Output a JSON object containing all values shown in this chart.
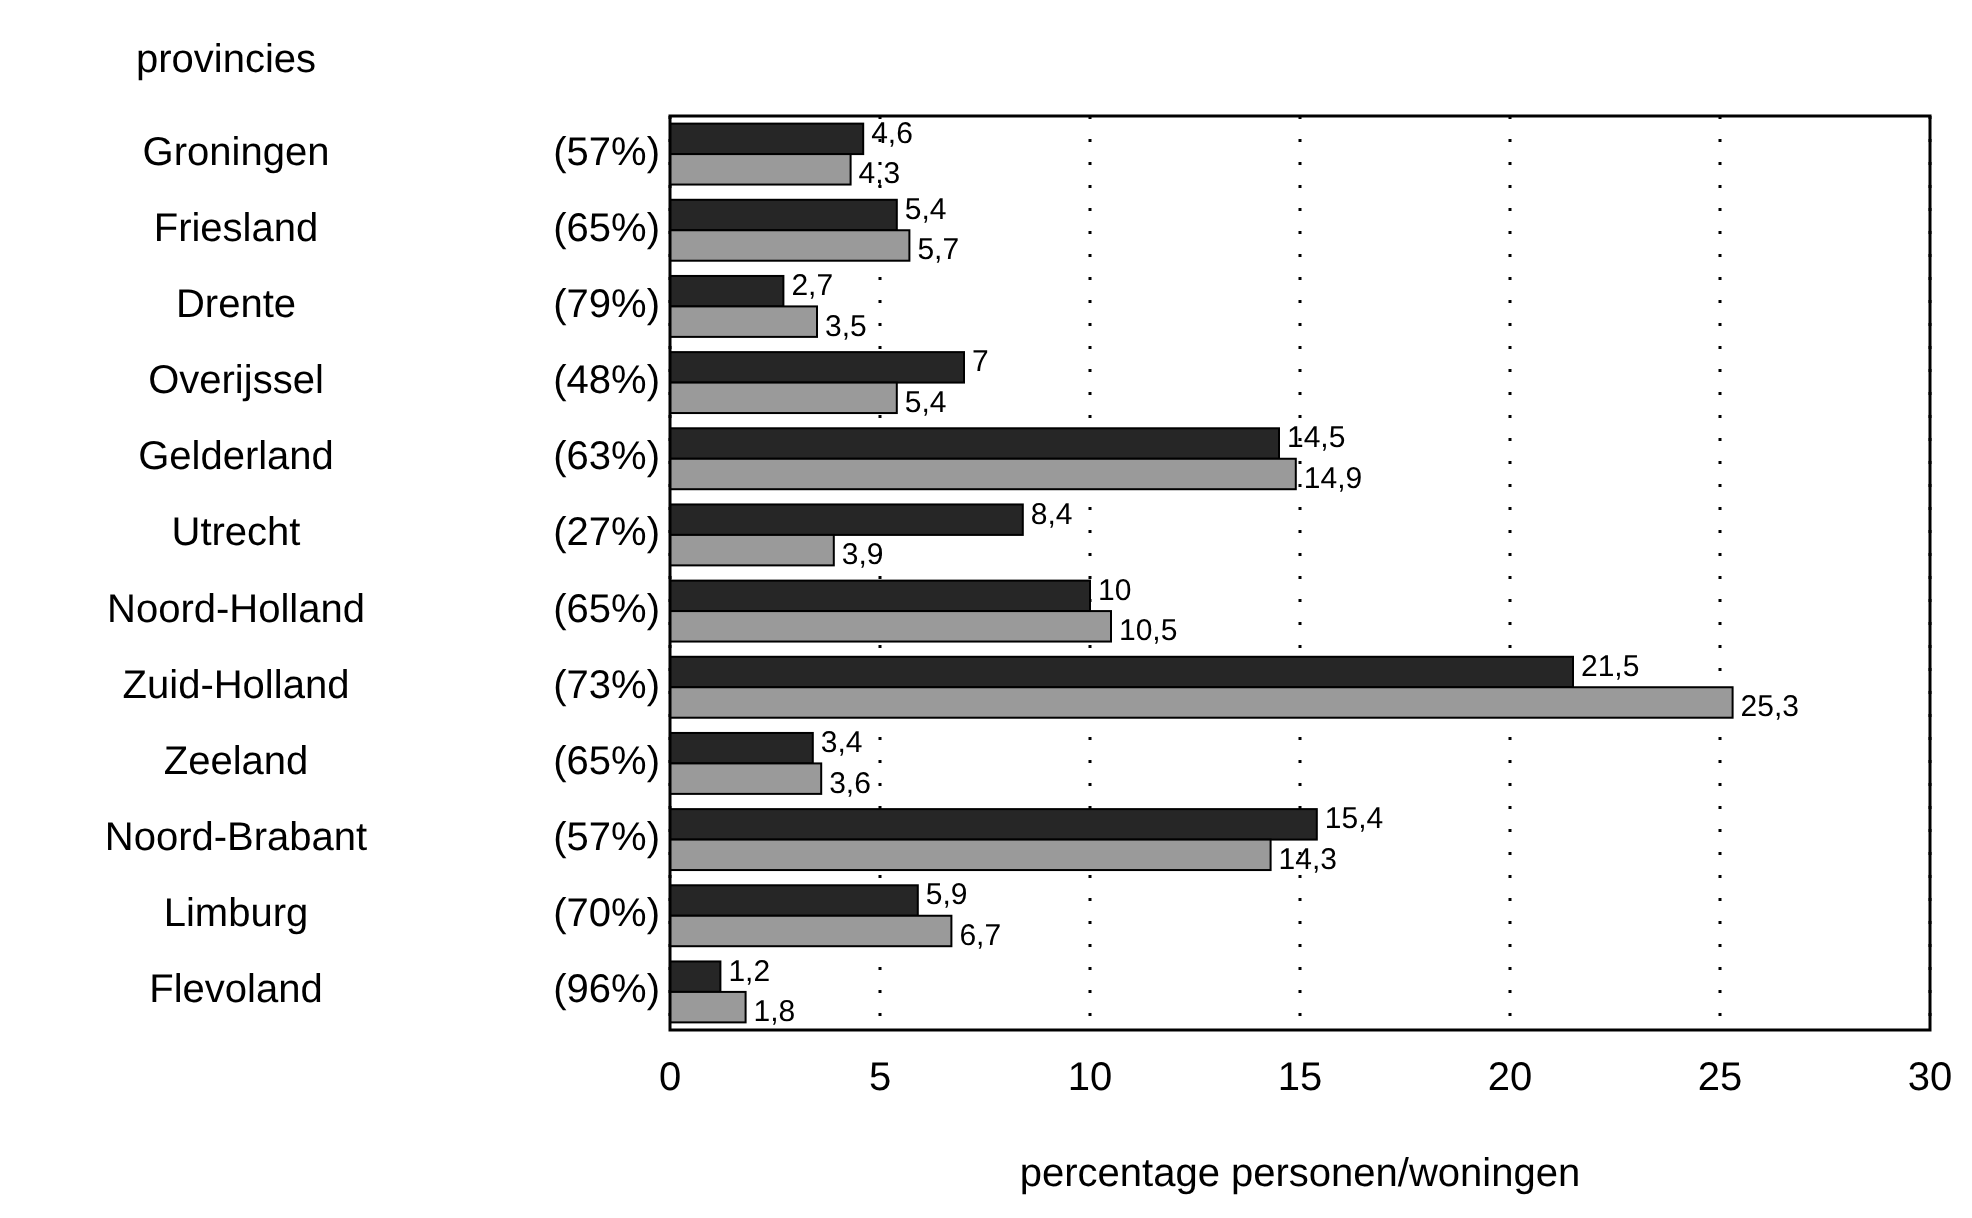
{
  "chart_data": {
    "type": "bar",
    "orientation": "horizontal",
    "ylabel": "provincies",
    "xlabel": "percentage personen/woningen",
    "categories": [
      "Groningen",
      "Friesland",
      "Drente",
      "Overijssel",
      "Gelderland",
      "Utrecht",
      "Noord-Holland",
      "Zuid-Holland",
      "Zeeland",
      "Noord-Brabant",
      "Limburg",
      "Flevoland"
    ],
    "y2_categories": [
      "(57%)",
      "(65%)",
      "(79%)",
      "(48%)",
      "(63%)",
      "(27%)",
      "(65%)",
      "(73%)",
      "(65%)",
      "(57%)",
      "(70%)",
      "(96%)"
    ],
    "series": [
      {
        "color": "#262626",
        "values": [
          4.6,
          5.4,
          2.7,
          7,
          14.5,
          8.4,
          10,
          21.5,
          3.4,
          15.4,
          5.9,
          1.2
        ],
        "value_labels": [
          "4,6",
          "5,4",
          "2,7",
          "7",
          "14,5",
          "8,4",
          "10",
          "21,5",
          "3,4",
          "15,4",
          "5,9",
          "1,2"
        ]
      },
      {
        "color": "#9a9a9a",
        "values": [
          4.3,
          5.7,
          3.5,
          5.4,
          14.9,
          3.9,
          10.5,
          25.3,
          3.6,
          14.3,
          6.7,
          1.8
        ],
        "value_labels": [
          "4,3",
          "5,7",
          "3,5",
          "5,4",
          "14,9",
          "3,9",
          "10,5",
          "25,3",
          "3,6",
          "14,3",
          "6,7",
          "1,8"
        ]
      }
    ],
    "xlim": [
      0,
      30
    ],
    "xticks": [
      0,
      5,
      10,
      15,
      20,
      25,
      30
    ],
    "grid": "x"
  }
}
